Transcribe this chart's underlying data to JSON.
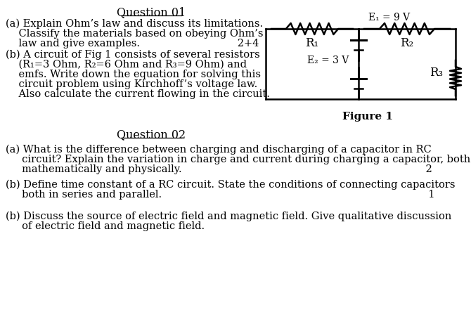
{
  "bg_color": "#ffffff",
  "title_q1": "Question 01",
  "title_q2": "Question 02",
  "figure_label": "Figure 1",
  "E1_label": "E₁ = 9 V",
  "E2_label": "E₂ = 3 V",
  "R1_label": "R₁",
  "R2_label": "R₂",
  "R3_label": "R₃",
  "font_size_main": 10.5,
  "font_size_title": 11.5,
  "text_color": "#000000",
  "circuit_color": "#000000",
  "text_a_lines": [
    "(a) Explain Ohm’s law and discuss its limitations.",
    "    Classify the materials based on obeying Ohm’s",
    "    law and give examples.                              2+4"
  ],
  "text_b_lines": [
    "(b) A circuit of Fig 1 consists of several resistors",
    "    (R₁=3 Ohm, R₂=6 Ohm and R₃=9 Ohm) and",
    "    emfs. Write down the equation for solving this",
    "    circuit problem using Kirchhoff’s voltage law.",
    "    Also calculate the current flowing in the circuit."
  ],
  "text_q2a_lines": [
    "(a) What is the difference between charging and discharging of a capacitor in RC",
    "     circuit? Explain the variation in charge and current during charging a capacitor, both",
    "     mathematically and physically.                                                                           2"
  ],
  "text_q2b_lines": [
    "(b) Define time constant of a RC circuit. State the conditions of connecting capacitors",
    "     both in series and parallel.                                                                                  1"
  ],
  "text_q2c_lines": [
    "(b) Discuss the source of electric field and magnetic field. Give qualitative discussion",
    "     of electric field and magnetic field."
  ]
}
